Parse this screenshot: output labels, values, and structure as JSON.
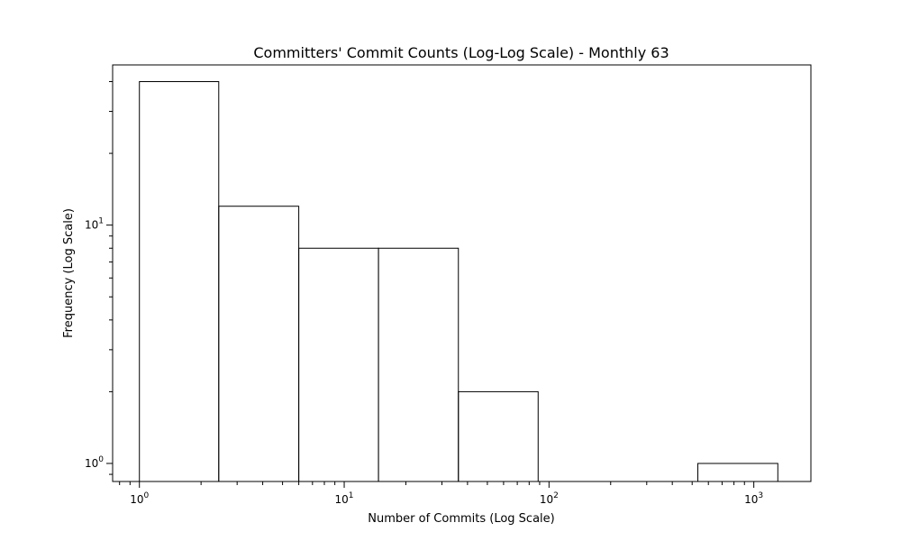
{
  "chart_data": {
    "type": "histogram",
    "title": "Committers' Commit Counts (Log-Log Scale) - Monthly 63",
    "xlabel": "Number of Commits (Log Scale)",
    "ylabel": "Frequency (Log Scale)",
    "xscale": "log",
    "yscale": "log",
    "xlim": [
      0.74,
      1900
    ],
    "ylim": [
      0.84,
      47
    ],
    "x_major_ticks": [
      {
        "value": 1,
        "base": "10",
        "exp": "0"
      },
      {
        "value": 10,
        "base": "10",
        "exp": "1"
      },
      {
        "value": 100,
        "base": "10",
        "exp": "2"
      },
      {
        "value": 1000,
        "base": "10",
        "exp": "3"
      }
    ],
    "y_major_ticks": [
      {
        "value": 1,
        "base": "10",
        "exp": "0"
      },
      {
        "value": 10,
        "base": "10",
        "exp": "1"
      }
    ],
    "grid": false,
    "legend": "none",
    "bar_face_color": "none",
    "bar_edge_color": "#000000",
    "bins": [
      {
        "x_start": 1,
        "x_end": 2.44,
        "value": 40
      },
      {
        "x_start": 2.44,
        "x_end": 6.0,
        "value": 12
      },
      {
        "x_start": 6.0,
        "x_end": 14.7,
        "value": 8
      },
      {
        "x_start": 14.7,
        "x_end": 36.1,
        "value": 8
      },
      {
        "x_start": 36.1,
        "x_end": 88.5,
        "value": 2
      },
      {
        "x_start": 88.5,
        "x_end": 217,
        "value": 0
      },
      {
        "x_start": 217,
        "x_end": 533,
        "value": 0
      },
      {
        "x_start": 533,
        "x_end": 1310,
        "value": 1
      }
    ]
  }
}
